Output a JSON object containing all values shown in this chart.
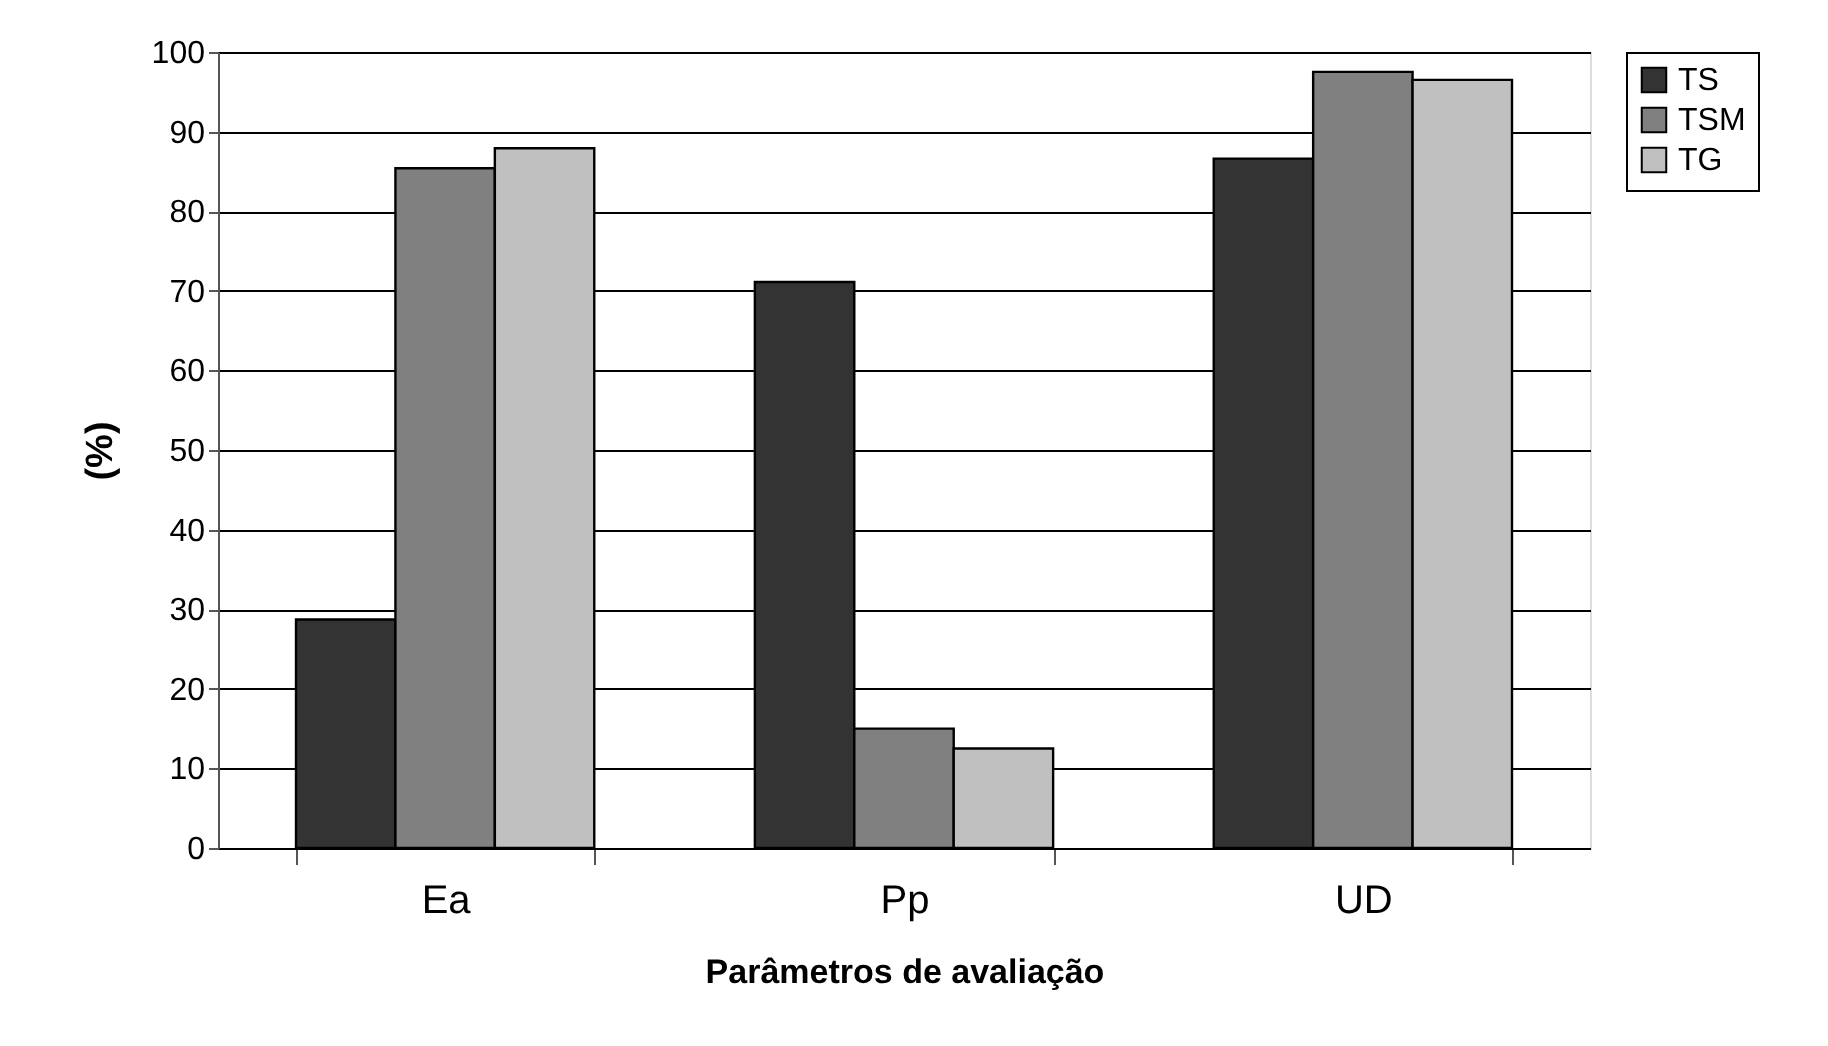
{
  "chart_data": {
    "type": "bar",
    "xlabel": "Parâmetros de avaliação",
    "ylabel": "(%)",
    "categories": [
      "Ea",
      "Pp",
      "UD"
    ],
    "series": [
      {
        "name": "TS",
        "color": "#333333",
        "values": [
          28.7,
          71.1,
          86.6
        ]
      },
      {
        "name": "TSM",
        "color": "#808080",
        "values": [
          85.4,
          15,
          97.5
        ]
      },
      {
        "name": "TG",
        "color": "#c0c0c0",
        "values": [
          87.9,
          12.5,
          96.5
        ]
      }
    ],
    "ylim": [
      0,
      100
    ],
    "yticks": [
      0,
      10,
      20,
      30,
      40,
      50,
      60,
      70,
      80,
      90,
      100
    ],
    "grid": "y",
    "legend": "right"
  }
}
